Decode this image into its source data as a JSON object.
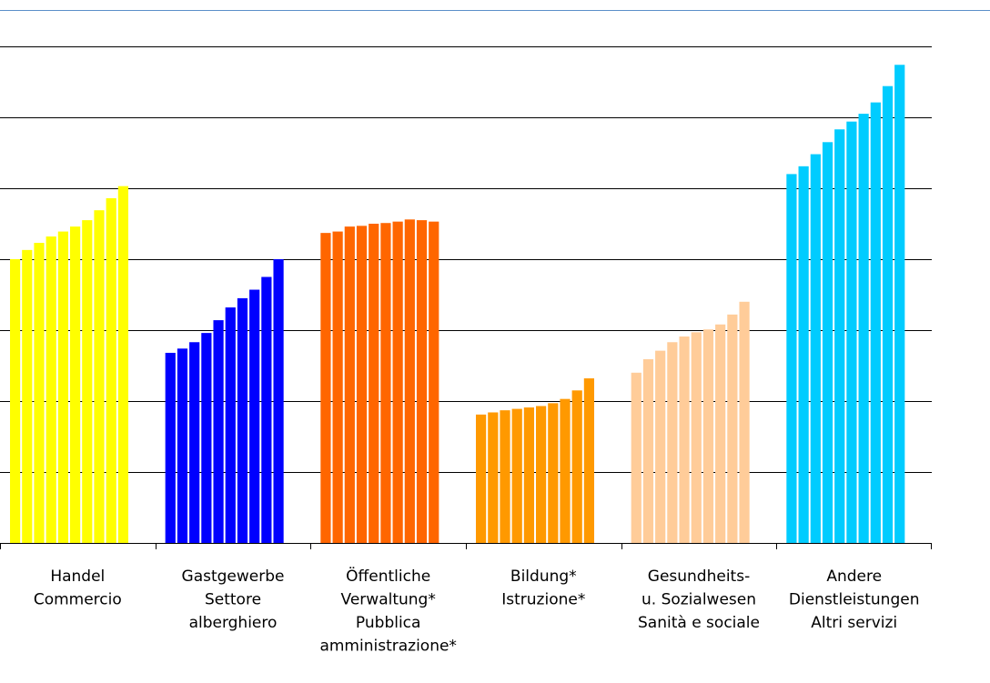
{
  "chart_data": {
    "type": "bar",
    "title": "",
    "xlabel": "",
    "ylabel": "",
    "ylim": [
      0,
      7
    ],
    "grid": true,
    "y_gridlines": [
      1,
      2,
      3,
      4,
      5,
      6,
      7
    ],
    "legend": "none",
    "groups": [
      {
        "label_lines": [
          "Handel",
          "Commercio"
        ],
        "color": "#FFFF00",
        "values": [
          4.0,
          4.13,
          4.23,
          4.32,
          4.39,
          4.46,
          4.55,
          4.69,
          4.86,
          5.03
        ]
      },
      {
        "label_lines": [
          "Gastgewerbe",
          "Settore",
          "alberghiero"
        ],
        "color": "#0000FF",
        "values": [
          2.68,
          2.74,
          2.83,
          2.96,
          3.14,
          3.32,
          3.45,
          3.57,
          3.75,
          4.0
        ]
      },
      {
        "label_lines": [
          "Öffentliche",
          "Verwaltung*",
          "Pubblica",
          "amministrazione*"
        ],
        "color": "#FF6600",
        "values": [
          4.37,
          4.39,
          4.46,
          4.47,
          4.5,
          4.51,
          4.53,
          4.56,
          4.55,
          4.53
        ]
      },
      {
        "label_lines": [
          "Bildung*",
          "Istruzione*"
        ],
        "color": "#FF9900",
        "values": [
          1.81,
          1.84,
          1.87,
          1.89,
          1.91,
          1.93,
          1.97,
          2.03,
          2.15,
          2.32
        ]
      },
      {
        "label_lines": [
          "Gesundheits-",
          "u. Sozialwesen",
          "Sanità e sociale"
        ],
        "color": "#FFCC99",
        "values": [
          2.4,
          2.59,
          2.71,
          2.83,
          2.91,
          2.97,
          3.01,
          3.08,
          3.22,
          3.4
        ]
      },
      {
        "label_lines": [
          "Andere",
          "Dienstleistungen",
          "Altri servizi"
        ],
        "color": "#00CCFF",
        "values": [
          5.2,
          5.31,
          5.48,
          5.65,
          5.83,
          5.94,
          6.05,
          6.21,
          6.44,
          6.74
        ]
      }
    ]
  }
}
